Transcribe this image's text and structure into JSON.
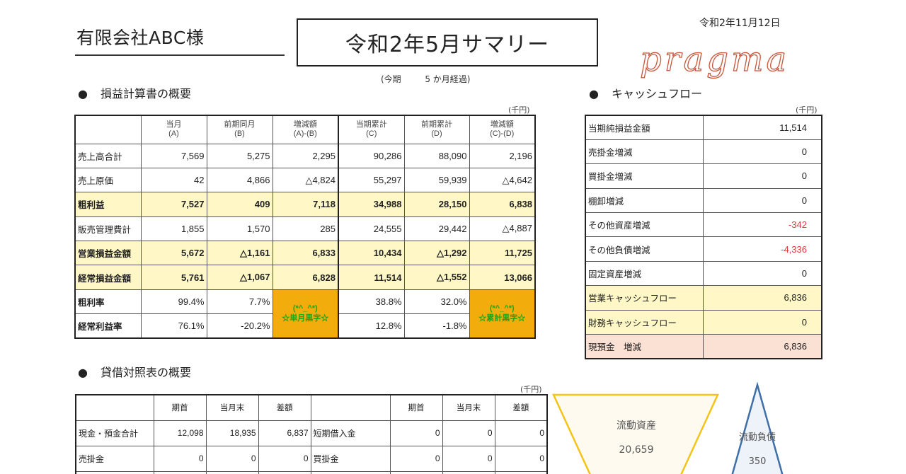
{
  "header": {
    "company": "有限会社ABC様",
    "title": "令和2年5月サマリー",
    "date": "令和2年11月12日",
    "logo_text": "pragma",
    "period_open": "(今期",
    "period_months": "5 か月経過)"
  },
  "pl_section": {
    "bullet": "●",
    "title": "損益計算書の概要",
    "unit": "(千円)",
    "columns": [
      {
        "line1": "当月",
        "line2": "(A)"
      },
      {
        "line1": "前期同月",
        "line2": "(B)"
      },
      {
        "line1": "増減額",
        "line2": "(A)-(B)"
      },
      {
        "line1": "当期累計",
        "line2": "(C)"
      },
      {
        "line1": "前期累計",
        "line2": "(D)"
      },
      {
        "line1": "増減額",
        "line2": "(C)-(D)"
      }
    ],
    "rows": [
      {
        "label": "売上高合計",
        "values": [
          "7,569",
          "5,275",
          "2,295",
          "90,286",
          "88,090",
          "2,196"
        ]
      },
      {
        "label": "売上原価",
        "values": [
          "42",
          "4,866",
          "△4,824",
          "55,297",
          "59,939",
          "△4,642"
        ]
      },
      {
        "label": "粗利益",
        "values": [
          "7,527",
          "409",
          "7,118",
          "34,988",
          "28,150",
          "6,838"
        ]
      },
      {
        "label": "販売管理費計",
        "values": [
          "1,855",
          "1,570",
          "285",
          "24,555",
          "29,442",
          "△4,887"
        ]
      },
      {
        "label": "営業損益金額",
        "values": [
          "5,672",
          "△1,161",
          "6,833",
          "10,434",
          "△1,292",
          "11,725"
        ]
      },
      {
        "label": "経常損益金額",
        "values": [
          "5,761",
          "△1,067",
          "6,828",
          "11,514",
          "△1,552",
          "13,066"
        ]
      }
    ],
    "ratio_rows": [
      {
        "label": "粗利率",
        "values": [
          "99.4%",
          "7.7%",
          "38.8%",
          "32.0%"
        ]
      },
      {
        "label": "経常利益率",
        "values": [
          "76.1%",
          "-20.2%",
          "12.8%",
          "-1.8%"
        ]
      }
    ],
    "badge_month": {
      "face": "(*^_^*)",
      "text": "☆単月黒字☆"
    },
    "badge_cumulative": {
      "face": "(*^_^*)",
      "text": "☆累計黒字☆"
    }
  },
  "cf_section": {
    "bullet": "●",
    "title": "キャッシュフロー",
    "unit": "(千円)",
    "rows": [
      {
        "label": "当期純損益金額",
        "value": "11,514"
      },
      {
        "label": "売掛金増減",
        "value": "0"
      },
      {
        "label": "買掛金増減",
        "value": "0"
      },
      {
        "label": "棚卸増減",
        "value": "0"
      },
      {
        "label": "その他資産増減",
        "value": "-342"
      },
      {
        "label": "その他負債増減",
        "value": "-4,336"
      },
      {
        "label": "固定資産増減",
        "value": "0"
      },
      {
        "label": "営業キャッシュフロー",
        "value": "6,836"
      },
      {
        "label": "財務キャッシュフロー",
        "value": "0"
      },
      {
        "label": "現預金　増減",
        "value": "6,836"
      }
    ]
  },
  "bs_section": {
    "bullet": "●",
    "title": "貸借対照表の概要",
    "unit": "(千円)",
    "columns": [
      "期首",
      "当月末",
      "差額",
      "期首",
      "当月末",
      "差額"
    ],
    "rows": [
      {
        "left_label": "現金・預金合計",
        "left": [
          "12,098",
          "18,935",
          "6,837"
        ],
        "right_label": "短期借入金",
        "right": [
          "0",
          "0",
          "0"
        ]
      },
      {
        "left_label": "売掛金",
        "left": [
          "0",
          "0",
          "0"
        ],
        "right_label": "買掛金",
        "right": [
          "0",
          "0",
          "0"
        ]
      },
      {
        "left_label": "",
        "left": [
          "",
          "",
          ""
        ],
        "right_label": "",
        "right": [
          "",
          "",
          ""
        ]
      }
    ]
  },
  "diagram": {
    "asset_label": "流動資産",
    "asset_value": "20,659",
    "liability_label": "流動負債",
    "liability_value": "350",
    "asset_color": "#f3c417",
    "liability_color": "#3f6fa8"
  }
}
